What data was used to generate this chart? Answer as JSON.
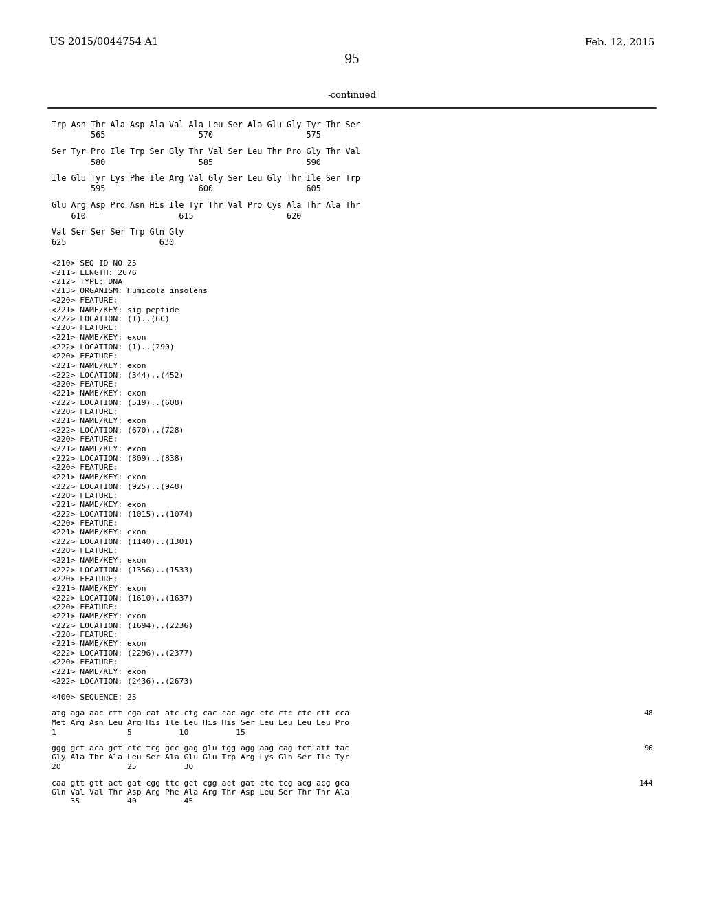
{
  "header_left": "US 2015/0044754 A1",
  "header_right": "Feb. 12, 2015",
  "page_number": "95",
  "continued_label": "-continued",
  "background_color": "#ffffff",
  "text_color": "#000000",
  "content_lines": [
    {
      "type": "seq_aa",
      "text": "Trp Asn Thr Ala Asp Ala Val Ala Leu Ser Ala Glu Gly Tyr Thr Ser"
    },
    {
      "type": "seq_num",
      "text": "        565                   570                   575"
    },
    {
      "type": "gap"
    },
    {
      "type": "seq_aa",
      "text": "Ser Tyr Pro Ile Trp Ser Gly Thr Val Ser Leu Thr Pro Gly Thr Val"
    },
    {
      "type": "seq_num",
      "text": "        580                   585                   590"
    },
    {
      "type": "gap"
    },
    {
      "type": "seq_aa",
      "text": "Ile Glu Tyr Lys Phe Ile Arg Val Gly Ser Leu Gly Thr Ile Ser Trp"
    },
    {
      "type": "seq_num",
      "text": "        595                   600                   605"
    },
    {
      "type": "gap"
    },
    {
      "type": "seq_aa",
      "text": "Glu Arg Asp Pro Asn His Ile Tyr Thr Val Pro Cys Ala Thr Ala Thr"
    },
    {
      "type": "seq_num",
      "text": "    610                   615                   620"
    },
    {
      "type": "gap"
    },
    {
      "type": "seq_aa",
      "text": "Val Ser Ser Ser Trp Gln Gly"
    },
    {
      "type": "seq_num",
      "text": "625                   630"
    },
    {
      "type": "gap2"
    },
    {
      "type": "mono",
      "text": "<210> SEQ ID NO 25"
    },
    {
      "type": "mono",
      "text": "<211> LENGTH: 2676"
    },
    {
      "type": "mono",
      "text": "<212> TYPE: DNA"
    },
    {
      "type": "mono",
      "text": "<213> ORGANISM: Humicola insolens"
    },
    {
      "type": "mono",
      "text": "<220> FEATURE:"
    },
    {
      "type": "mono",
      "text": "<221> NAME/KEY: sig_peptide"
    },
    {
      "type": "mono",
      "text": "<222> LOCATION: (1)..(60)"
    },
    {
      "type": "mono",
      "text": "<220> FEATURE:"
    },
    {
      "type": "mono",
      "text": "<221> NAME/KEY: exon"
    },
    {
      "type": "mono",
      "text": "<222> LOCATION: (1)..(290)"
    },
    {
      "type": "mono",
      "text": "<220> FEATURE:"
    },
    {
      "type": "mono",
      "text": "<221> NAME/KEY: exon"
    },
    {
      "type": "mono",
      "text": "<222> LOCATION: (344)..(452)"
    },
    {
      "type": "mono",
      "text": "<220> FEATURE:"
    },
    {
      "type": "mono",
      "text": "<221> NAME/KEY: exon"
    },
    {
      "type": "mono",
      "text": "<222> LOCATION: (519)..(608)"
    },
    {
      "type": "mono",
      "text": "<220> FEATURE:"
    },
    {
      "type": "mono",
      "text": "<221> NAME/KEY: exon"
    },
    {
      "type": "mono",
      "text": "<222> LOCATION: (670)..(728)"
    },
    {
      "type": "mono",
      "text": "<220> FEATURE:"
    },
    {
      "type": "mono",
      "text": "<221> NAME/KEY: exon"
    },
    {
      "type": "mono",
      "text": "<222> LOCATION: (809)..(838)"
    },
    {
      "type": "mono",
      "text": "<220> FEATURE:"
    },
    {
      "type": "mono",
      "text": "<221> NAME/KEY: exon"
    },
    {
      "type": "mono",
      "text": "<222> LOCATION: (925)..(948)"
    },
    {
      "type": "mono",
      "text": "<220> FEATURE:"
    },
    {
      "type": "mono",
      "text": "<221> NAME/KEY: exon"
    },
    {
      "type": "mono",
      "text": "<222> LOCATION: (1015)..(1074)"
    },
    {
      "type": "mono",
      "text": "<220> FEATURE:"
    },
    {
      "type": "mono",
      "text": "<221> NAME/KEY: exon"
    },
    {
      "type": "mono",
      "text": "<222> LOCATION: (1140)..(1301)"
    },
    {
      "type": "mono",
      "text": "<220> FEATURE:"
    },
    {
      "type": "mono",
      "text": "<221> NAME/KEY: exon"
    },
    {
      "type": "mono",
      "text": "<222> LOCATION: (1356)..(1533)"
    },
    {
      "type": "mono",
      "text": "<220> FEATURE:"
    },
    {
      "type": "mono",
      "text": "<221> NAME/KEY: exon"
    },
    {
      "type": "mono",
      "text": "<222> LOCATION: (1610)..(1637)"
    },
    {
      "type": "mono",
      "text": "<220> FEATURE:"
    },
    {
      "type": "mono",
      "text": "<221> NAME/KEY: exon"
    },
    {
      "type": "mono",
      "text": "<222> LOCATION: (1694)..(2236)"
    },
    {
      "type": "mono",
      "text": "<220> FEATURE:"
    },
    {
      "type": "mono",
      "text": "<221> NAME/KEY: exon"
    },
    {
      "type": "mono",
      "text": "<222> LOCATION: (2296)..(2377)"
    },
    {
      "type": "mono",
      "text": "<220> FEATURE:"
    },
    {
      "type": "mono",
      "text": "<221> NAME/KEY: exon"
    },
    {
      "type": "mono",
      "text": "<222> LOCATION: (2436)..(2673)"
    },
    {
      "type": "gap"
    },
    {
      "type": "mono",
      "text": "<400> SEQUENCE: 25"
    },
    {
      "type": "gap"
    },
    {
      "type": "dna",
      "text": "atg aga aac ctt cga cat atc ctg cac cac agc ctc ctc ctc ctt cca",
      "num": "48"
    },
    {
      "type": "aa",
      "text": "Met Arg Asn Leu Arg His Ile Leu His His Ser Leu Leu Leu Leu Pro"
    },
    {
      "type": "anum",
      "text": "1               5          10          15"
    },
    {
      "type": "gap"
    },
    {
      "type": "dna",
      "text": "ggg gct aca gct ctc tcg gcc gag glu tgg agg aag cag tct att tac",
      "num": "96"
    },
    {
      "type": "aa",
      "text": "Gly Ala Thr Ala Leu Ser Ala Glu Glu Trp Arg Lys Gln Ser Ile Tyr"
    },
    {
      "type": "anum",
      "text": "20              25          30"
    },
    {
      "type": "gap"
    },
    {
      "type": "dna",
      "text": "caa gtt gtt act gat cgg ttc gct cgg act gat ctc tcg acg acg gca",
      "num": "144"
    },
    {
      "type": "aa",
      "text": "Gln Val Val Thr Asp Arg Phe Ala Arg Thr Asp Leu Ser Thr Thr Ala"
    },
    {
      "type": "anum",
      "text": "    35          40          45"
    }
  ]
}
